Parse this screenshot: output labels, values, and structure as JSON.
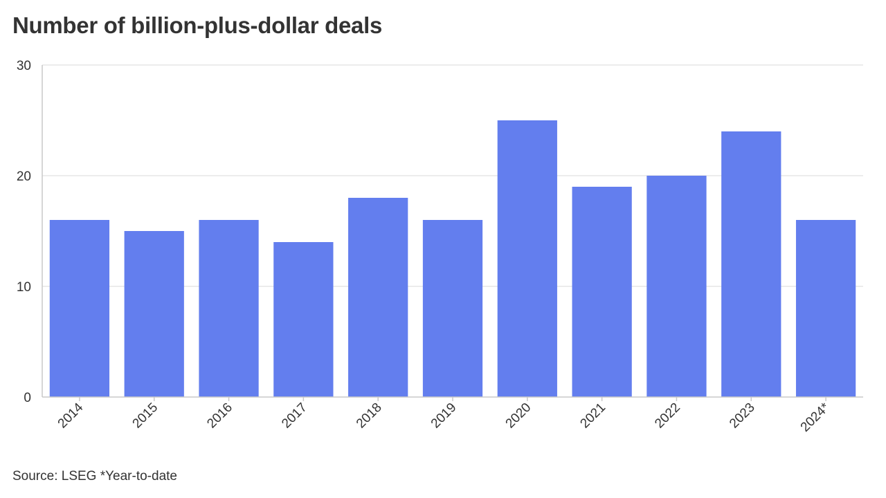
{
  "colors": {
    "bar": "#637eee",
    "grid": "#e6e6e6",
    "axis": "#c8c8c8",
    "text": "#333333"
  },
  "chart_data": {
    "type": "bar",
    "title": "Number of billion-plus-dollar deals",
    "source": "Source: LSEG *Year-to-date",
    "xlabel": "",
    "ylabel": "",
    "categories": [
      "2014",
      "2015",
      "2016",
      "2017",
      "2018",
      "2019",
      "2020",
      "2021",
      "2022",
      "2023",
      "2024*"
    ],
    "values": [
      16,
      15,
      16,
      14,
      18,
      16,
      25,
      19,
      20,
      24,
      16
    ],
    "ylim": [
      0,
      30
    ],
    "yticks": [
      0,
      10,
      20,
      30
    ],
    "grid": true,
    "x_tick_rotation": "diagonal"
  }
}
